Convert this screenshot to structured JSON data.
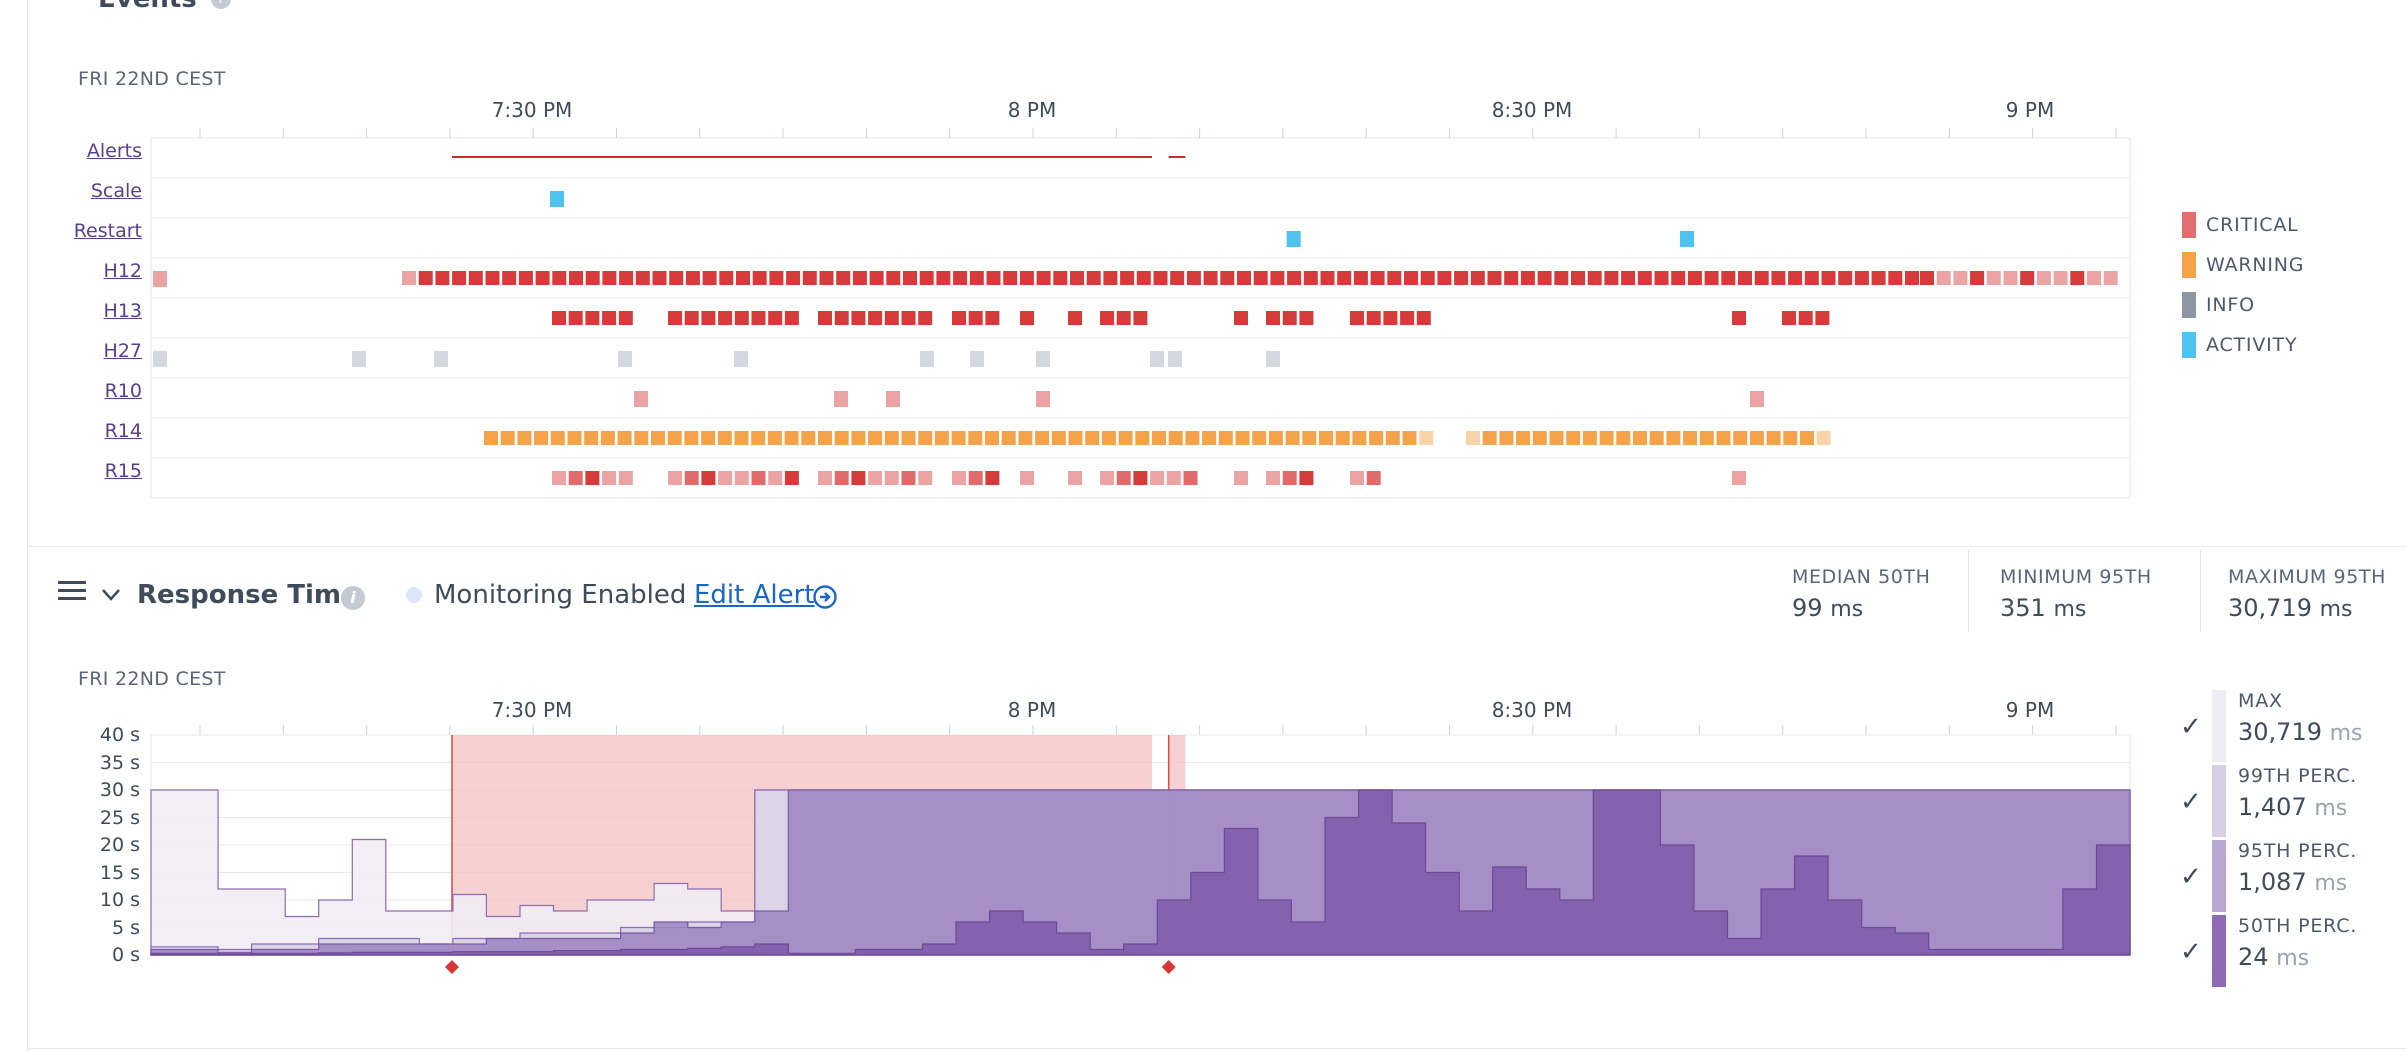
{
  "events_section": {
    "title": "Events",
    "timezone": "FRI 22ND CEST",
    "time_ticks": [
      "7:30 PM",
      "8 PM",
      "8:30 PM",
      "9 PM"
    ],
    "rows": [
      {
        "label": "Alerts"
      },
      {
        "label": "Scale"
      },
      {
        "label": "Restart"
      },
      {
        "label": "H12"
      },
      {
        "label": "H13"
      },
      {
        "label": "H27"
      },
      {
        "label": "R10"
      },
      {
        "label": "R14"
      },
      {
        "label": "R15"
      }
    ],
    "legend": [
      {
        "label": "CRITICAL",
        "color": "#e07070"
      },
      {
        "label": "WARNING",
        "color": "#f4a34a"
      },
      {
        "label": "INFO",
        "color": "#8d96a3"
      },
      {
        "label": "ACTIVITY",
        "color": "#4fc3f0"
      }
    ]
  },
  "response_time": {
    "title": "Response Time",
    "monitoring_status": "Monitoring Enabled",
    "edit_alert_label": "Edit Alert",
    "stats": [
      {
        "label": "MEDIAN 50TH",
        "value": "99",
        "unit": "ms"
      },
      {
        "label": "MINIMUM 95TH",
        "value": "351",
        "unit": "ms"
      },
      {
        "label": "MAXIMUM 95TH",
        "value": "30,719",
        "unit": "ms"
      }
    ],
    "legend": [
      {
        "label": "MAX",
        "value": "30,719",
        "unit": "ms",
        "color": "#efedf4"
      },
      {
        "label": "99TH PERC.",
        "value": "1,407",
        "unit": "ms",
        "color": "#d7d0e4"
      },
      {
        "label": "95TH PERC.",
        "value": "1,087",
        "unit": "ms",
        "color": "#b9a9d2"
      },
      {
        "label": "50TH PERC.",
        "value": "24",
        "unit": "ms",
        "color": "#8e6bb3"
      }
    ]
  },
  "chart_data": [
    {
      "type": "table",
      "title": "Events",
      "timezone": "FRI 22ND CEST",
      "x_range_minutes_after_7pm": [
        12,
        71.5
      ],
      "time_ticks": [
        {
          "label": "7:30 PM",
          "minute": 30
        },
        {
          "label": "8 PM",
          "minute": 60
        },
        {
          "label": "8:30 PM",
          "minute": 90
        },
        {
          "label": "9 PM",
          "minute": 120
        }
      ],
      "rows": [
        "Alerts",
        "Scale",
        "Restart",
        "H12",
        "H13",
        "H27",
        "R10",
        "R14",
        "R15"
      ],
      "alert_periods_minutes": [
        [
          25.2,
          67.2
        ],
        [
          68.2,
          69.2
        ]
      ],
      "scale_events_minutes": [
        31.5
      ],
      "restart_events_minutes": [
        75.7,
        99.3
      ]
    },
    {
      "type": "area",
      "title": "Response Time",
      "timezone": "FRI 22ND CEST",
      "x_range_minutes_after_7pm": [
        12,
        71.5
      ],
      "ylabel": "seconds",
      "ylim": [
        0,
        40
      ],
      "yticks": [
        "0 s",
        "5 s",
        "10 s",
        "15 s",
        "20 s",
        "25 s",
        "30 s",
        "35 s",
        "40 s"
      ],
      "alert_triggers_minutes": [
        25.2,
        68.2
      ],
      "series": [
        {
          "name": "MAX",
          "values": [
            30,
            30,
            12,
            12,
            7,
            10,
            21,
            8,
            8,
            11,
            7,
            9,
            8,
            10,
            10,
            13,
            12,
            8,
            30,
            30,
            30,
            30,
            30,
            30,
            30,
            30,
            30,
            30,
            30,
            30,
            30,
            30,
            30,
            30,
            30,
            30,
            30,
            30,
            30,
            30,
            30,
            30,
            30,
            30,
            30,
            30,
            30,
            30,
            30,
            30,
            30,
            30,
            30,
            30,
            30,
            30,
            30,
            30,
            30,
            30
          ]
        },
        {
          "name": "99TH PERC.",
          "values": [
            1.5,
            1.5,
            1,
            2,
            2,
            3,
            3,
            3,
            2,
            3,
            3,
            4,
            4,
            4,
            5,
            5,
            6,
            6,
            30,
            30,
            30,
            30,
            30,
            30,
            30,
            30,
            30,
            30,
            30,
            30,
            30,
            30,
            30,
            30,
            30,
            30,
            30,
            30,
            30,
            30,
            30,
            30,
            30,
            30,
            30,
            30,
            30,
            30,
            30,
            30,
            30,
            30,
            30,
            30,
            30,
            30,
            30,
            30,
            30,
            30
          ]
        },
        {
          "name": "95TH PERC.",
          "values": [
            1,
            1,
            0.5,
            1,
            1,
            2,
            2,
            2,
            2,
            2,
            3,
            3,
            3,
            3,
            4,
            6,
            5,
            6,
            8,
            30,
            30,
            30,
            30,
            30,
            30,
            30,
            30,
            30,
            30,
            30,
            30,
            30,
            30,
            30,
            30,
            30,
            30,
            30,
            30,
            30,
            30,
            30,
            30,
            30,
            30,
            30,
            30,
            30,
            30,
            30,
            30,
            30,
            30,
            30,
            30,
            30,
            30,
            30,
            30,
            4
          ]
        },
        {
          "name": "50TH PERC.",
          "values": [
            0.3,
            0.3,
            0.2,
            0.3,
            0.3,
            0.4,
            0.5,
            0.5,
            0.5,
            0.6,
            0.6,
            0.6,
            0.8,
            0.8,
            1,
            1,
            1.2,
            1.5,
            2,
            0.3,
            0.3,
            1,
            1,
            2,
            6,
            8,
            6,
            4,
            1,
            2,
            10,
            15,
            23,
            10,
            6,
            25,
            30,
            24,
            15,
            8,
            16,
            12,
            10,
            30,
            30,
            20,
            8,
            3,
            12,
            18,
            10,
            5,
            4,
            1,
            1,
            1,
            1,
            12,
            20,
            4
          ]
        }
      ]
    }
  ]
}
